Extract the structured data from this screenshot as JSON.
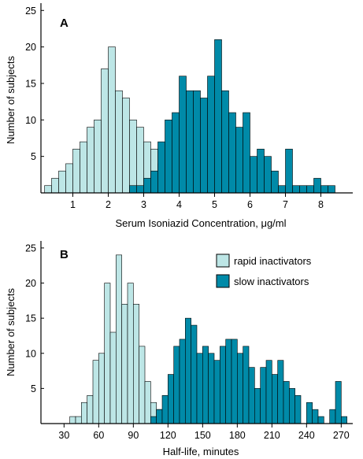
{
  "chart_data": [
    {
      "type": "bar",
      "panel": "A",
      "xlabel": "Serum Isoniazid Concentration, μg/ml",
      "ylabel": "Number of subjects",
      "xlim": [
        0.1,
        8.9
      ],
      "ylim": [
        0,
        26
      ],
      "xticks": [
        1,
        2,
        3,
        4,
        5,
        6,
        7,
        8
      ],
      "yticks": [
        5,
        10,
        15,
        20,
        25
      ],
      "bin_width": 0.2,
      "series": [
        {
          "name": "rapid inactivators",
          "x": [
            0.3,
            0.5,
            0.7,
            0.9,
            1.1,
            1.3,
            1.5,
            1.7,
            1.9,
            2.1,
            2.3,
            2.5,
            2.7,
            2.9,
            3.1,
            3.3,
            3.5,
            3.7,
            3.9,
            4.1,
            4.3,
            4.5,
            4.7,
            4.9,
            5.1,
            5.3,
            5.5
          ],
          "values": [
            1,
            2,
            3,
            4,
            6,
            7,
            9,
            10,
            17,
            20,
            14,
            13,
            10,
            9,
            7,
            6,
            4,
            3,
            2,
            2,
            1,
            1,
            1,
            1,
            2,
            2,
            1
          ]
        },
        {
          "name": "slow inactivators",
          "x": [
            2.7,
            2.9,
            3.1,
            3.3,
            3.5,
            3.7,
            3.9,
            4.1,
            4.3,
            4.5,
            4.7,
            4.9,
            5.1,
            5.3,
            5.5,
            5.7,
            5.9,
            6.1,
            6.3,
            6.5,
            6.7,
            6.9,
            7.1,
            7.3,
            7.5,
            7.7,
            7.9,
            8.1,
            8.3
          ],
          "values": [
            1,
            1,
            2,
            3,
            7,
            10,
            11,
            16,
            14,
            14,
            13,
            16,
            21,
            14,
            11,
            9,
            11,
            5,
            6,
            5,
            3,
            1,
            6,
            1,
            1,
            1,
            2,
            1,
            1
          ]
        }
      ]
    },
    {
      "type": "bar",
      "panel": "B",
      "xlabel": "Half-life, minutes",
      "ylabel": "Number of subjects",
      "xlim": [
        10,
        280
      ],
      "ylim": [
        0,
        26
      ],
      "xticks": [
        30,
        60,
        90,
        120,
        150,
        180,
        210,
        240,
        270
      ],
      "yticks": [
        5,
        10,
        15,
        20,
        25
      ],
      "bin_width": 5,
      "legend_position": "top-right",
      "series": [
        {
          "name": "rapid inactivators",
          "x": [
            37.5,
            42.5,
            47.5,
            52.5,
            57.5,
            62.5,
            67.5,
            72.5,
            77.5,
            82.5,
            87.5,
            92.5,
            97.5,
            102.5,
            107.5,
            112.5
          ],
          "values": [
            1,
            1,
            3,
            4,
            9,
            10,
            20,
            13,
            24,
            17,
            20,
            17,
            11,
            6,
            3,
            2
          ]
        },
        {
          "name": "slow inactivators",
          "x": [
            107.5,
            112.5,
            117.5,
            122.5,
            127.5,
            132.5,
            137.5,
            142.5,
            147.5,
            152.5,
            157.5,
            162.5,
            167.5,
            172.5,
            177.5,
            182.5,
            187.5,
            192.5,
            197.5,
            202.5,
            207.5,
            212.5,
            217.5,
            222.5,
            227.5,
            232.5,
            237.5,
            242.5,
            247.5,
            252.5,
            257.5,
            262.5,
            267.5,
            272.5
          ],
          "values": [
            1,
            2,
            4,
            7,
            11,
            12,
            15,
            14,
            10,
            11,
            10,
            9,
            11,
            12,
            12,
            10,
            11,
            8,
            5,
            8,
            9,
            7,
            9,
            6,
            5,
            4,
            0,
            3,
            2,
            1,
            0,
            2,
            6,
            1
          ]
        }
      ]
    }
  ],
  "legend": {
    "rapid_label": "rapid inactivators",
    "slow_label": "slow inactivators"
  },
  "colors": {
    "rapid": "#bde6e6",
    "slow": "#008aa8",
    "outline": "#000000"
  }
}
